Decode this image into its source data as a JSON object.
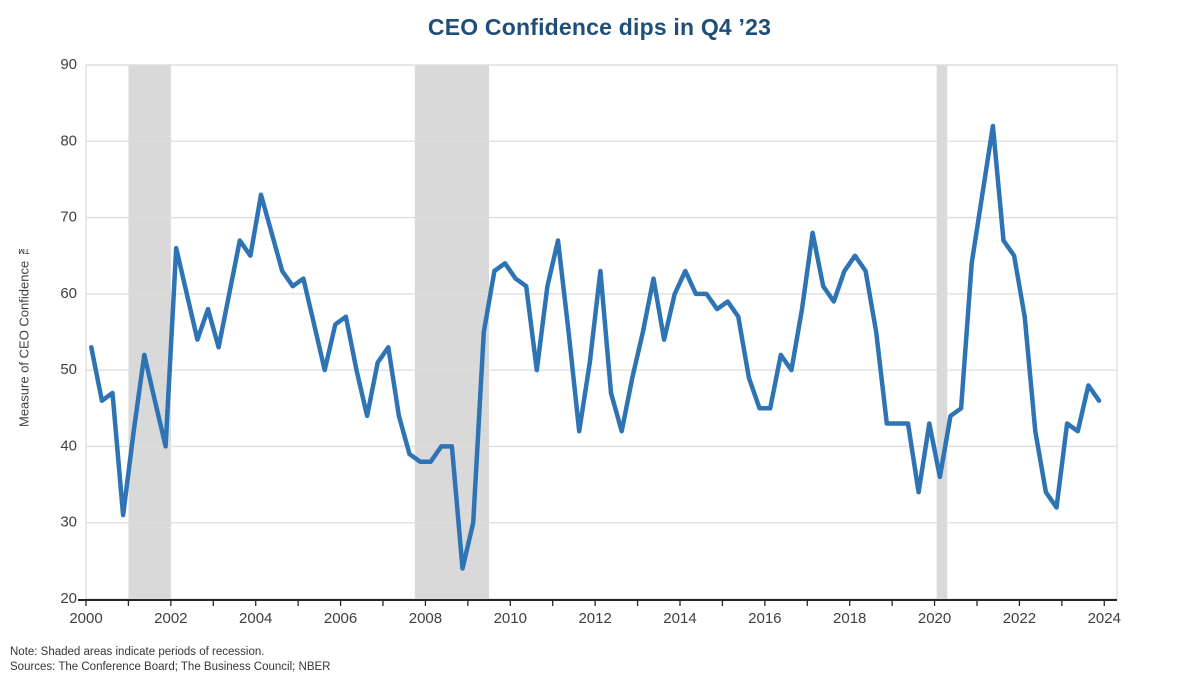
{
  "title": "CEO Confidence dips in Q4 ’23",
  "notes": {
    "note": "Note: Shaded areas indicate periods of recession.",
    "sources": "Sources: The Conference Board; The Business Council; NBER"
  },
  "chart_data": {
    "type": "line",
    "title": "CEO Confidence dips in Q4 ’23",
    "xlabel": "",
    "ylabel": "Measure of CEO Confidence ™",
    "ylim": [
      20,
      90
    ],
    "xlim": [
      2000,
      2024.3
    ],
    "y_ticks": [
      20,
      30,
      40,
      50,
      60,
      70,
      80,
      90
    ],
    "x_tick_years": [
      2000,
      2001,
      2002,
      2003,
      2004,
      2005,
      2006,
      2007,
      2008,
      2009,
      2010,
      2011,
      2012,
      2013,
      2014,
      2015,
      2016,
      2017,
      2018,
      2019,
      2020,
      2021,
      2022,
      2023,
      2024
    ],
    "x_label_years": [
      "2000",
      "2002",
      "2004",
      "2006",
      "2008",
      "2010",
      "2012",
      "2014",
      "2016",
      "2018",
      "2020",
      "2022",
      "2024"
    ],
    "grid": "horizontal",
    "legend": "none",
    "frequency": "quarterly",
    "start_year": 2000,
    "series": [
      {
        "name": "Measure of CEO Confidence",
        "color": "#2E74B5",
        "values": [
          53,
          46,
          47,
          31,
          42,
          52,
          46,
          40,
          66,
          60,
          54,
          58,
          53,
          60,
          67,
          65,
          73,
          68,
          63,
          61,
          62,
          56,
          50,
          56,
          57,
          50,
          44,
          51,
          53,
          44,
          39,
          38,
          38,
          40,
          40,
          24,
          30,
          55,
          63,
          64,
          62,
          61,
          50,
          61,
          67,
          55,
          42,
          51,
          63,
          47,
          42,
          49,
          55,
          62,
          54,
          60,
          63,
          60,
          60,
          58,
          59,
          57,
          49,
          45,
          45,
          52,
          50,
          58,
          68,
          61,
          59,
          63,
          65,
          63,
          55,
          43,
          43,
          43,
          34,
          43,
          36,
          44,
          45,
          64,
          73,
          82,
          67,
          65,
          57,
          42,
          34,
          32,
          43,
          42,
          48,
          46
        ]
      }
    ],
    "recession_bands": [
      {
        "start": 2001.0,
        "end": 2002.0
      },
      {
        "start": 2007.75,
        "end": 2009.5
      },
      {
        "start": 2020.05,
        "end": 2020.3
      }
    ],
    "colors": {
      "line": "#2E74B5",
      "band": "#D9D9D9",
      "grid": "#DEDEDE",
      "axis": "#262626",
      "tick_label": "#404040",
      "title": "#1F4E79"
    }
  }
}
